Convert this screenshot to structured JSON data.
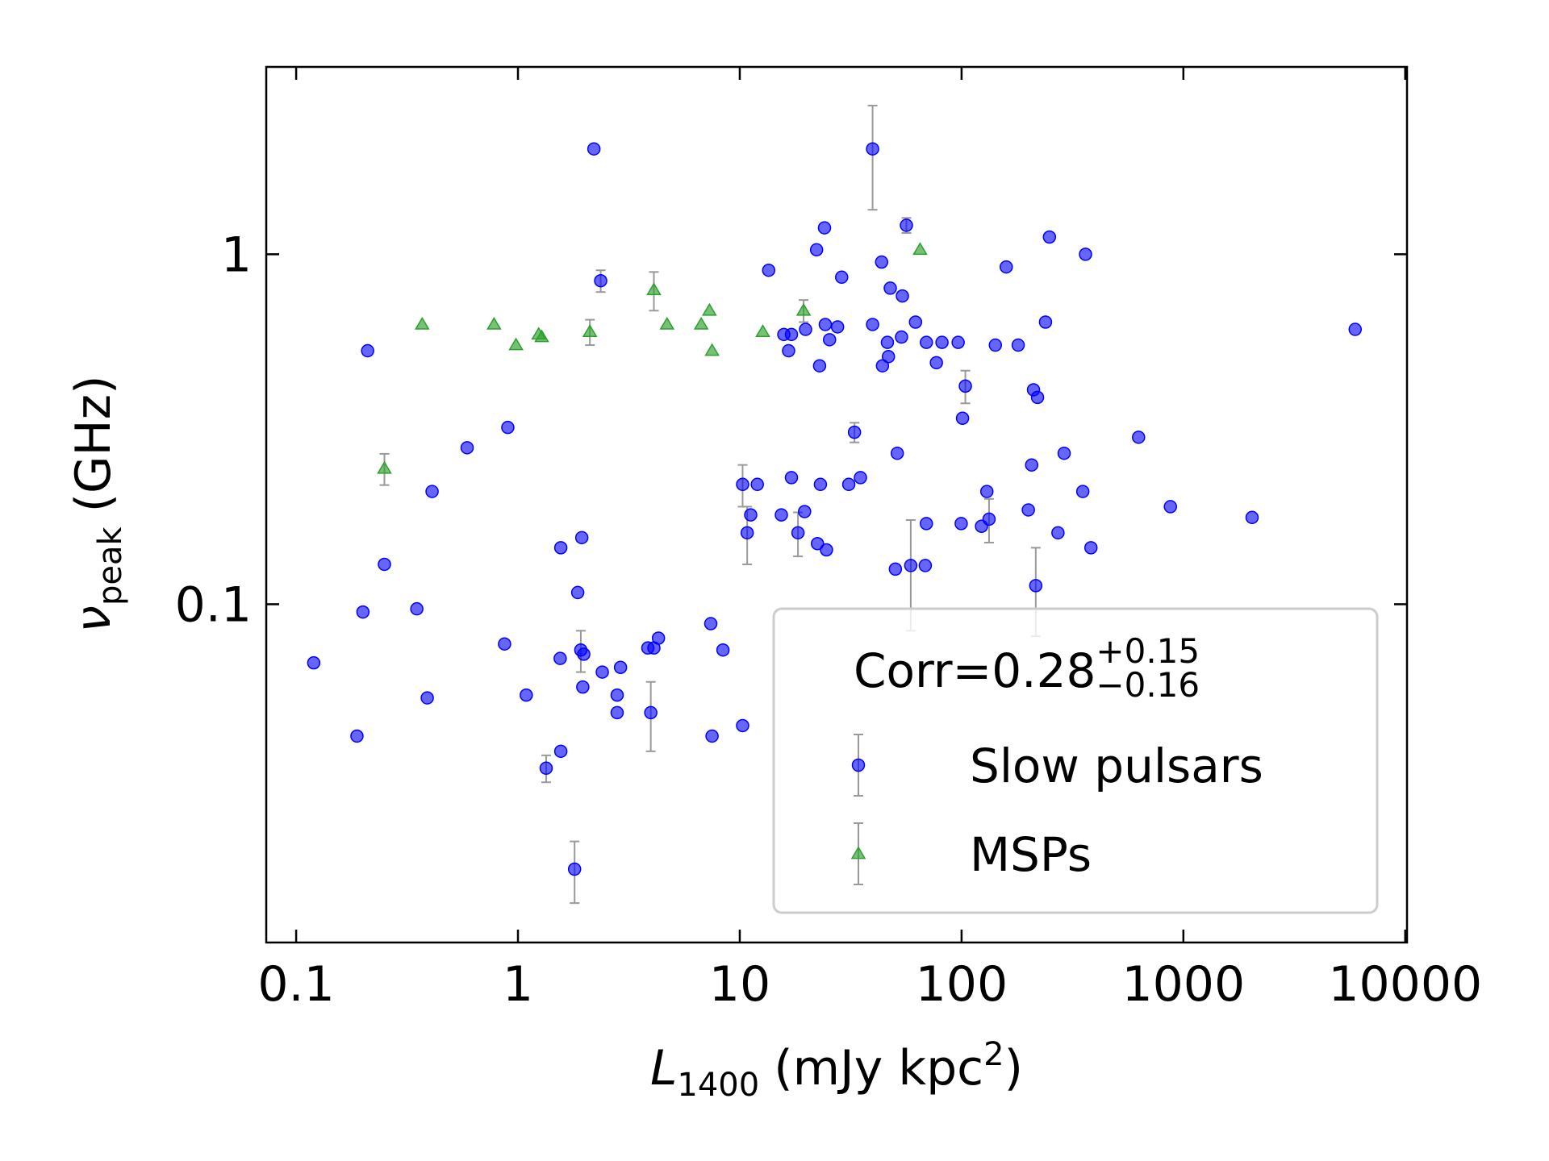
{
  "chart_data": {
    "type": "scatter",
    "log_x": true,
    "log_y": true,
    "xlabel": {
      "symbol": "L",
      "sub": "1400",
      "unit": "(mJy kpc",
      "sup": "2",
      "close": ")"
    },
    "ylabel": {
      "symbol": "ν",
      "sub": "peak",
      "unit": "(GHz)"
    },
    "annotation": {
      "text": "Corr=0.28",
      "sup": "+0.15",
      "sub": "−0.16"
    },
    "xlim": [
      0.0733,
      10190
    ],
    "ylim": [
      0.0108,
      3.43
    ],
    "xticks": [
      0.1,
      1,
      10,
      100,
      1000,
      10000
    ],
    "yticks": [
      0.1,
      1
    ],
    "errorbar_color": "#999999",
    "legend": "lower right",
    "series": [
      {
        "name": "Slow pulsars",
        "color": "#0000ff",
        "marker": "circle",
        "x": [
          0.12,
          0.188,
          0.2,
          0.21,
          0.25,
          0.35,
          0.39,
          0.41,
          0.59,
          0.87,
          0.9,
          1.09,
          1.34,
          1.55,
          1.56,
          1.56,
          1.86,
          1.94,
          1.92,
          1.98,
          1.96,
          1.8,
          2.2,
          2.36,
          2.4,
          2.8,
          2.8,
          2.9,
          3.85,
          3.97,
          4.1,
          4.3,
          7.4,
          7.5,
          8.4,
          10.3,
          10.3,
          10.8,
          11.2,
          12.0,
          13.5,
          15.4,
          15.8,
          16.6,
          17.1,
          17.1,
          18.3,
          19.6,
          19.8,
          22.2,
          22.4,
          22.9,
          23.1,
          24.1,
          24.3,
          24.6,
          25.4,
          27.6,
          28.8,
          31.0,
          32.9,
          35.0,
          39.7,
          39.7,
          43.6,
          44.0,
          46.3,
          46.8,
          47.7,
          50.3,
          51.3,
          53.6,
          54.1,
          56.4,
          59.0,
          62.0,
          68.6,
          69.4,
          69.4,
          77.0,
          81.6,
          96.5,
          99.6,
          101,
          104,
          123,
          130,
          133,
          142,
          159,
          180,
          200,
          207,
          211,
          216,
          220,
          239,
          249,
          272,
          290,
          352,
          362,
          383,
          628,
          874,
          2040,
          5950
        ],
        "values": [
          0.068,
          0.042,
          0.095,
          0.53,
          0.13,
          0.097,
          0.054,
          0.21,
          0.28,
          0.077,
          0.32,
          0.055,
          0.034,
          0.07,
          0.038,
          0.145,
          0.108,
          0.155,
          0.074,
          0.072,
          0.058,
          0.0175,
          2.0,
          0.84,
          0.064,
          0.055,
          0.049,
          0.066,
          0.075,
          0.049,
          0.075,
          0.08,
          0.088,
          0.042,
          0.074,
          0.045,
          0.22,
          0.16,
          0.18,
          0.22,
          0.9,
          0.18,
          0.59,
          0.53,
          0.59,
          0.23,
          0.16,
          0.184,
          0.61,
          1.03,
          0.149,
          0.48,
          0.22,
          1.19,
          0.63,
          0.143,
          0.57,
          0.62,
          0.86,
          0.22,
          0.31,
          0.23,
          2.0,
          0.63,
          0.95,
          0.48,
          0.56,
          0.51,
          0.8,
          0.126,
          0.27,
          0.58,
          0.76,
          1.21,
          0.129,
          0.64,
          0.129,
          0.17,
          0.56,
          0.49,
          0.56,
          0.56,
          0.17,
          0.34,
          0.42,
          0.167,
          0.21,
          0.175,
          0.55,
          0.92,
          0.55,
          0.186,
          0.25,
          0.41,
          0.113,
          0.39,
          0.64,
          1.12,
          0.16,
          0.27,
          0.21,
          1.0,
          0.145,
          0.3,
          0.19,
          0.177,
          0.61
        ],
        "yerr": [
          null,
          null,
          null,
          null,
          null,
          null,
          null,
          null,
          null,
          null,
          null,
          null,
          0.003,
          null,
          null,
          null,
          null,
          null,
          0.01,
          null,
          null,
          0.0035,
          null,
          0.06,
          null,
          null,
          null,
          null,
          null,
          0.011,
          null,
          null,
          null,
          null,
          null,
          null,
          0.03,
          0.03,
          null,
          null,
          null,
          null,
          null,
          null,
          null,
          null,
          0.023,
          null,
          null,
          null,
          null,
          null,
          null,
          null,
          null,
          null,
          null,
          null,
          null,
          null,
          0.02,
          null,
          0.66,
          null,
          null,
          null,
          null,
          null,
          null,
          null,
          null,
          null,
          null,
          0.06,
          0.045,
          null,
          null,
          null,
          null,
          null,
          null,
          null,
          null,
          null,
          0.045,
          null,
          null,
          0.025,
          null,
          null,
          null,
          null,
          null,
          null,
          0.032,
          null,
          null,
          null,
          null,
          null,
          null,
          null,
          null,
          null,
          null,
          null,
          null
        ]
      },
      {
        "name": "MSPs",
        "color": "#2ca02c",
        "marker": "triangle",
        "x": [
          0.25,
          0.37,
          0.78,
          0.98,
          1.24,
          1.28,
          2.11,
          4.1,
          4.7,
          6.7,
          7.3,
          7.5,
          12.7,
          19.4,
          65
        ],
        "values": [
          0.244,
          0.63,
          0.63,
          0.55,
          0.59,
          0.58,
          0.6,
          0.79,
          0.63,
          0.63,
          0.69,
          0.53,
          0.6,
          0.69,
          1.03
        ],
        "yerr": [
          0.025,
          null,
          null,
          null,
          null,
          null,
          0.05,
          0.1,
          null,
          null,
          null,
          null,
          null,
          0.05,
          null
        ]
      }
    ]
  }
}
